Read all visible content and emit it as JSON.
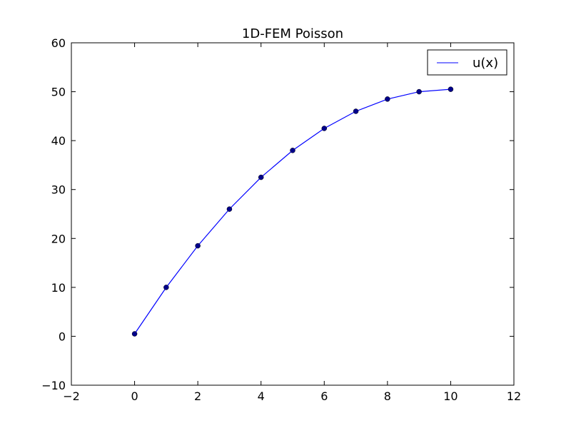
{
  "chart_data": {
    "type": "line",
    "title": "1D-FEM Poisson",
    "xlabel": "",
    "ylabel": "",
    "xlim": [
      -2,
      12
    ],
    "ylim": [
      -10,
      60
    ],
    "xticks": [
      -2,
      0,
      2,
      4,
      6,
      8,
      10,
      12
    ],
    "yticks": [
      -10,
      0,
      10,
      20,
      30,
      40,
      50,
      60
    ],
    "xtick_labels": [
      "−2",
      "0",
      "2",
      "4",
      "6",
      "8",
      "10",
      "12"
    ],
    "ytick_labels": [
      "−10",
      "0",
      "10",
      "20",
      "30",
      "40",
      "50",
      "60"
    ],
    "grid": false,
    "legend_placement": "top-right",
    "series": [
      {
        "name": "u(x)",
        "color": "#0000ff",
        "marker_color": "#00008b",
        "x": [
          0,
          1,
          2,
          3,
          4,
          5,
          6,
          7,
          8,
          9,
          10
        ],
        "y": [
          0.5,
          10.0,
          18.5,
          26.0,
          32.5,
          38.0,
          42.5,
          46.0,
          48.5,
          50.0,
          50.5
        ]
      }
    ]
  }
}
